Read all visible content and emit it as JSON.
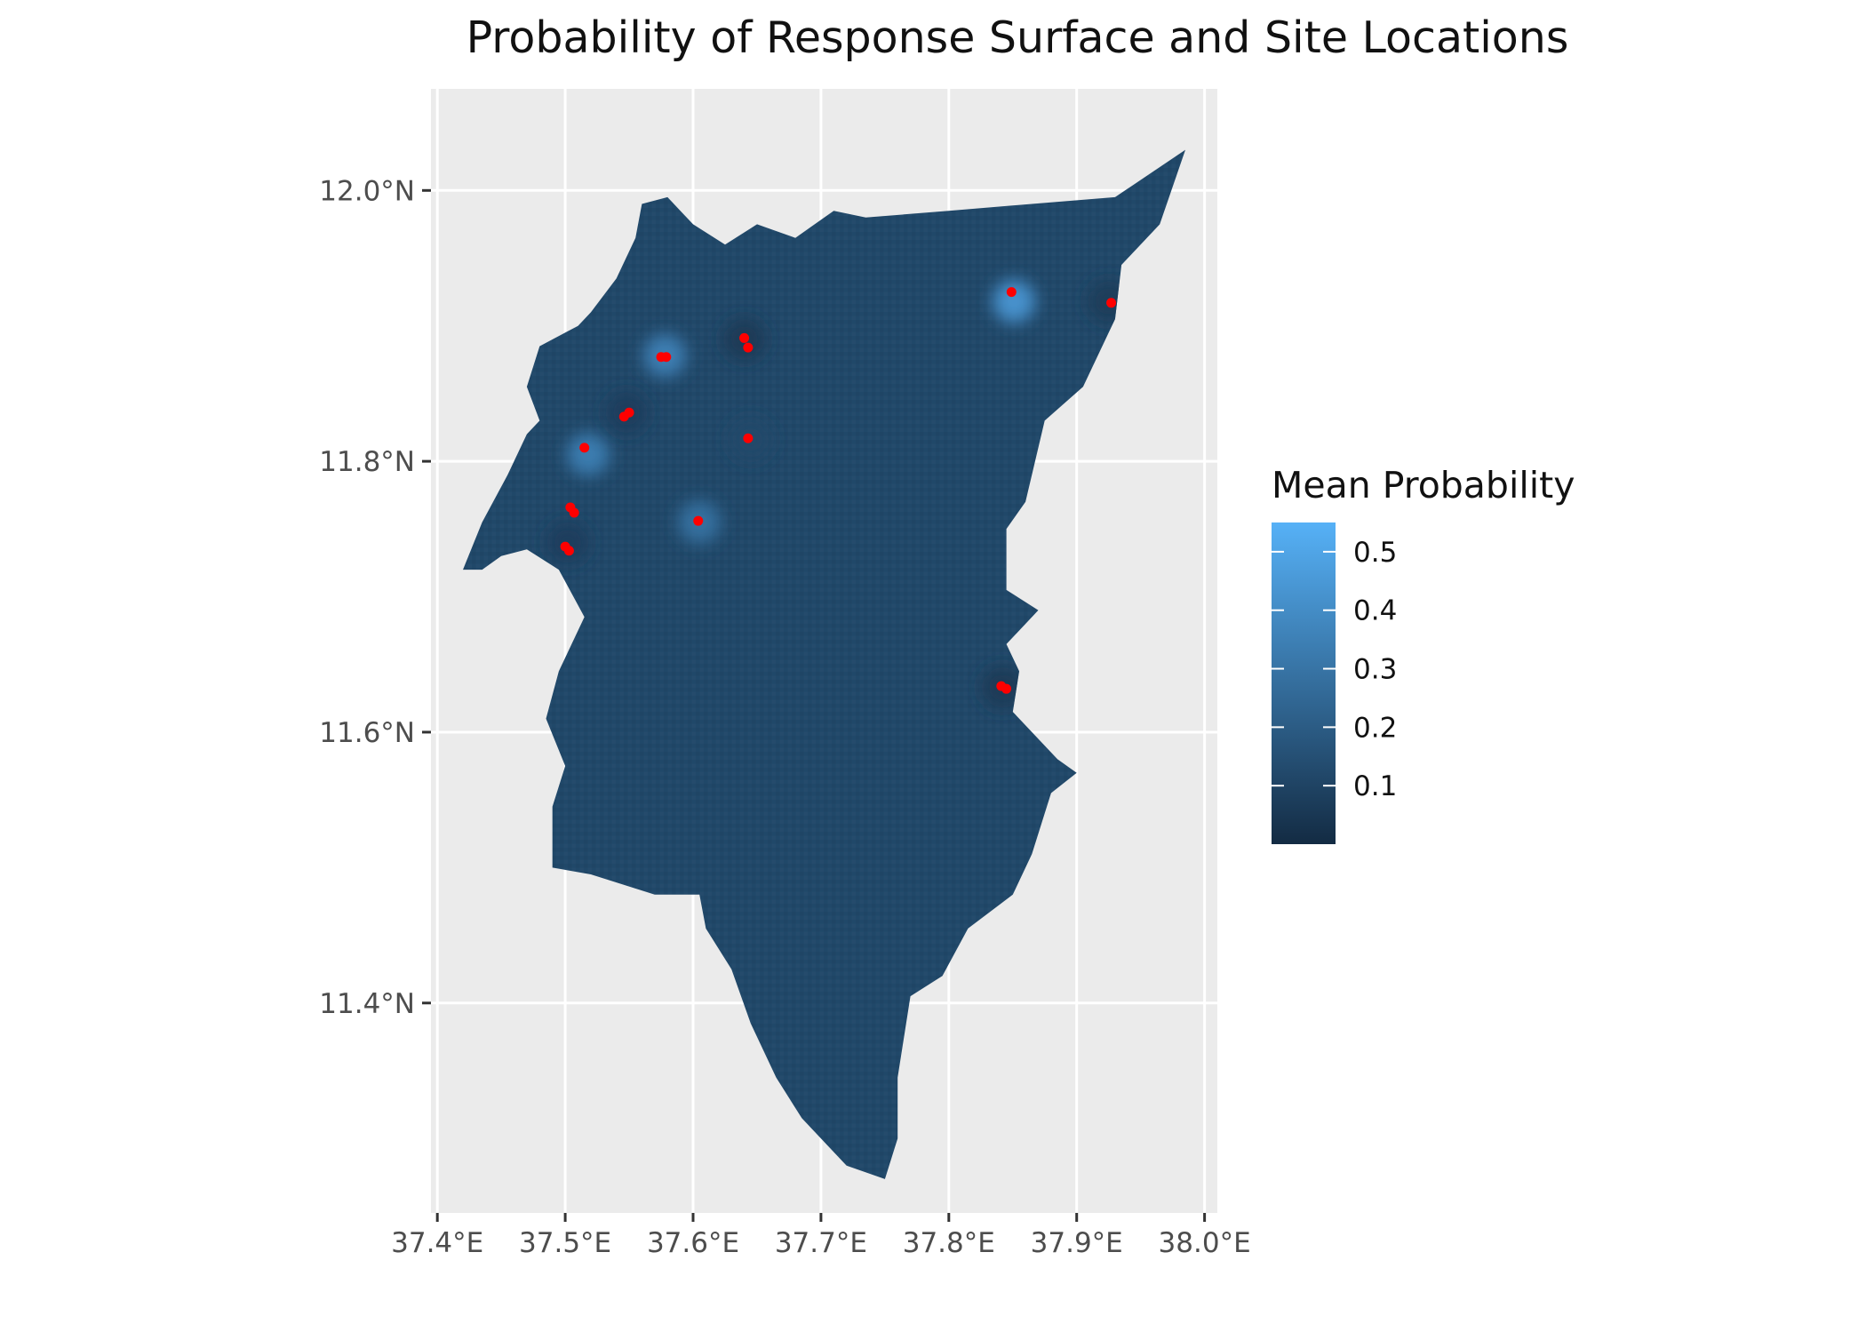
{
  "title": "Probability of Response Surface and Site Locations",
  "axes": {
    "x_ticks": [
      {
        "value": 37.4,
        "label": "37.4°E"
      },
      {
        "value": 37.5,
        "label": "37.5°E"
      },
      {
        "value": 37.6,
        "label": "37.6°E"
      },
      {
        "value": 37.7,
        "label": "37.7°E"
      },
      {
        "value": 37.8,
        "label": "37.8°E"
      },
      {
        "value": 37.9,
        "label": "37.9°E"
      },
      {
        "value": 38.0,
        "label": "38.0°E"
      }
    ],
    "y_ticks": [
      {
        "value": 11.4,
        "label": "11.4°N"
      },
      {
        "value": 11.6,
        "label": "11.6°N"
      },
      {
        "value": 11.8,
        "label": "11.8°N"
      },
      {
        "value": 12.0,
        "label": "12.0°N"
      }
    ],
    "xlim": [
      37.395,
      38.01
    ],
    "ylim": [
      11.245,
      12.075
    ]
  },
  "legend": {
    "title": "Mean Probability",
    "breaks": [
      {
        "value": 0.1,
        "label": "0.1"
      },
      {
        "value": 0.2,
        "label": "0.2"
      },
      {
        "value": 0.3,
        "label": "0.3"
      },
      {
        "value": 0.4,
        "label": "0.4"
      },
      {
        "value": 0.5,
        "label": "0.5"
      }
    ],
    "range": [
      0.0,
      0.55
    ],
    "color_low": "#132B43",
    "color_high": "#56B1F7"
  },
  "colors": {
    "panel_background": "#EBEBEB",
    "grid": "#FFFFFF",
    "site_points": "#FF0000",
    "surface_base": "#21496B"
  },
  "region_boundary": [
    [
      37.735,
      11.98
    ],
    [
      37.8,
      11.985
    ],
    [
      37.865,
      11.99
    ],
    [
      37.93,
      11.995
    ],
    [
      37.985,
      12.03
    ],
    [
      37.965,
      11.975
    ],
    [
      37.935,
      11.945
    ],
    [
      37.93,
      11.905
    ],
    [
      37.905,
      11.855
    ],
    [
      37.875,
      11.83
    ],
    [
      37.86,
      11.77
    ],
    [
      37.845,
      11.75
    ],
    [
      37.845,
      11.705
    ],
    [
      37.87,
      11.69
    ],
    [
      37.845,
      11.665
    ],
    [
      37.855,
      11.645
    ],
    [
      37.85,
      11.615
    ],
    [
      37.885,
      11.58
    ],
    [
      37.9,
      11.57
    ],
    [
      37.88,
      11.555
    ],
    [
      37.865,
      11.51
    ],
    [
      37.85,
      11.48
    ],
    [
      37.815,
      11.455
    ],
    [
      37.795,
      11.42
    ],
    [
      37.77,
      11.405
    ],
    [
      37.76,
      11.345
    ],
    [
      37.76,
      11.3
    ],
    [
      37.75,
      11.27
    ],
    [
      37.72,
      11.28
    ],
    [
      37.685,
      11.315
    ],
    [
      37.665,
      11.345
    ],
    [
      37.645,
      11.385
    ],
    [
      37.63,
      11.425
    ],
    [
      37.61,
      11.455
    ],
    [
      37.605,
      11.48
    ],
    [
      37.57,
      11.48
    ],
    [
      37.52,
      11.495
    ],
    [
      37.49,
      11.5
    ],
    [
      37.49,
      11.545
    ],
    [
      37.5,
      11.575
    ],
    [
      37.485,
      11.61
    ],
    [
      37.495,
      11.645
    ],
    [
      37.515,
      11.685
    ],
    [
      37.495,
      11.72
    ],
    [
      37.47,
      11.735
    ],
    [
      37.45,
      11.73
    ],
    [
      37.435,
      11.72
    ],
    [
      37.42,
      11.72
    ],
    [
      37.435,
      11.755
    ],
    [
      37.455,
      11.79
    ],
    [
      37.47,
      11.82
    ],
    [
      37.48,
      11.83
    ],
    [
      37.47,
      11.855
    ],
    [
      37.48,
      11.885
    ],
    [
      37.51,
      11.9
    ],
    [
      37.52,
      11.91
    ],
    [
      37.54,
      11.935
    ],
    [
      37.555,
      11.965
    ],
    [
      37.56,
      11.99
    ],
    [
      37.58,
      11.995
    ],
    [
      37.6,
      11.975
    ],
    [
      37.625,
      11.96
    ],
    [
      37.65,
      11.975
    ],
    [
      37.68,
      11.965
    ],
    [
      37.71,
      11.985
    ]
  ],
  "sites": [
    {
      "lon": 37.849,
      "lat": 11.925
    },
    {
      "lon": 37.927,
      "lat": 11.917
    },
    {
      "lon": 37.575,
      "lat": 11.877
    },
    {
      "lon": 37.579,
      "lat": 11.877
    },
    {
      "lon": 37.64,
      "lat": 11.891
    },
    {
      "lon": 37.643,
      "lat": 11.884
    },
    {
      "lon": 37.55,
      "lat": 11.836
    },
    {
      "lon": 37.546,
      "lat": 11.833
    },
    {
      "lon": 37.515,
      "lat": 11.81
    },
    {
      "lon": 37.643,
      "lat": 11.817
    },
    {
      "lon": 37.507,
      "lat": 11.762
    },
    {
      "lon": 37.504,
      "lat": 11.766
    },
    {
      "lon": 37.5,
      "lat": 11.737
    },
    {
      "lon": 37.503,
      "lat": 11.734
    },
    {
      "lon": 37.604,
      "lat": 11.756
    },
    {
      "lon": 37.841,
      "lat": 11.634
    },
    {
      "lon": 37.845,
      "lat": 11.632
    }
  ],
  "hotspots": [
    {
      "lon": 37.851,
      "lat": 11.918,
      "value": 0.42
    },
    {
      "lon": 37.578,
      "lat": 11.878,
      "value": 0.34
    },
    {
      "lon": 37.518,
      "lat": 11.805,
      "value": 0.33
    },
    {
      "lon": 37.605,
      "lat": 11.755,
      "value": 0.28
    },
    {
      "lon": 37.64,
      "lat": 11.89,
      "value": 0.06
    },
    {
      "lon": 37.548,
      "lat": 11.836,
      "value": 0.08
    },
    {
      "lon": 37.645,
      "lat": 11.816,
      "value": 0.12
    },
    {
      "lon": 37.502,
      "lat": 11.74,
      "value": 0.08
    },
    {
      "lon": 37.842,
      "lat": 11.633,
      "value": 0.06
    },
    {
      "lon": 37.925,
      "lat": 11.918,
      "value": 0.07
    }
  ]
}
